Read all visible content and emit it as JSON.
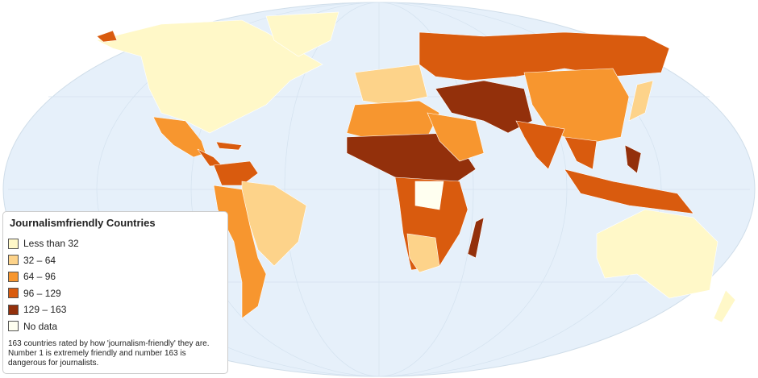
{
  "legend": {
    "title": "Journalismfriendly Countries",
    "items": [
      {
        "label": "Less than 32",
        "color": "#fff8c8"
      },
      {
        "label": "32 – 64",
        "color": "#fdd38a"
      },
      {
        "label": "64 – 96",
        "color": "#f7962f"
      },
      {
        "label": "96 – 129",
        "color": "#d95b0e"
      },
      {
        "label": "129 – 163",
        "color": "#93300b"
      },
      {
        "label": "No data",
        "color": "#fffff0"
      }
    ]
  },
  "note": "163 countries rated by how 'journalism-friendly' they are. Number 1 is extremely friendly and number 163 is dangerous for journalists."
}
